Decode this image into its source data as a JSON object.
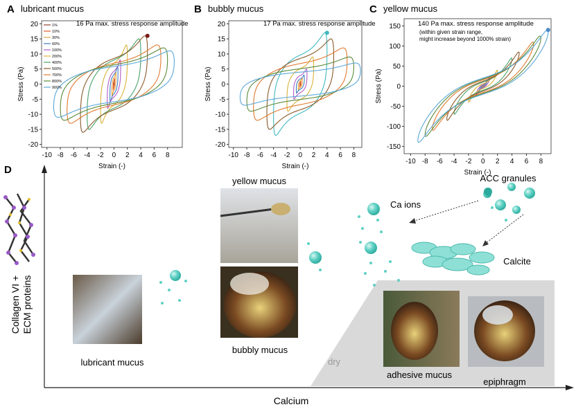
{
  "panels": [
    {
      "letter": "A",
      "title": "lubricant mucus",
      "annotation": [
        "16 Pa max. stress response amplitude"
      ],
      "xlabel": "Strain (-)",
      "ylabel": "Stress (Pa)",
      "xlim": [
        -10.8,
        10.2
      ],
      "ylim": [
        -21,
        21
      ],
      "xticks": [
        -10,
        -8,
        -6,
        -4,
        -2,
        0,
        2,
        4,
        6,
        8
      ],
      "yticks": [
        -20,
        -15,
        -10,
        -5,
        0,
        5,
        10,
        15,
        20
      ],
      "legend": [
        "1%",
        "10%",
        "30%",
        "60%",
        "100%",
        "200%",
        "400%",
        "500%",
        "700%",
        "800%",
        "900%"
      ],
      "strain": [
        0.01,
        0.1,
        0.3,
        0.6,
        1,
        2,
        4,
        5,
        7,
        8,
        9
      ],
      "stress": [
        0.5,
        2,
        4,
        6,
        8,
        13,
        15,
        16,
        13,
        12,
        11
      ],
      "colors": [
        "#8b3a2a",
        "#e05a2b",
        "#e8a33c",
        "#3c7dc0",
        "#b05bc4",
        "#d9b23a",
        "#4aa06a",
        "#8a5a2a",
        "#e07a30",
        "#5a8a3a",
        "#5aa6d6"
      ],
      "peak": [
        5,
        16
      ],
      "peak_color": "#7a1a1a"
    },
    {
      "letter": "B",
      "title": "bubbly mucus",
      "annotation": [
        "17 Pa max. stress response amplitude"
      ],
      "xlabel": "Strain (-)",
      "ylabel": "Stress (Pa)",
      "xlim": [
        -10.7,
        9.2
      ],
      "ylim": [
        -21,
        21
      ],
      "xticks": [
        -10,
        -8,
        -6,
        -4,
        -2,
        0,
        2,
        4,
        6,
        8
      ],
      "yticks": [
        -20,
        -15,
        -10,
        -5,
        0,
        5,
        10,
        15,
        20
      ],
      "strain": [
        0.01,
        0.1,
        0.3,
        0.6,
        1,
        2,
        4,
        5,
        7,
        8,
        9
      ],
      "stress": [
        0.3,
        1,
        2,
        3,
        5,
        9,
        17,
        15,
        12,
        9,
        7
      ],
      "colors": [
        "#8b3a2a",
        "#e05a2b",
        "#e8a33c",
        "#3c7dc0",
        "#b05bc4",
        "#d9b23a",
        "#3fb8c0",
        "#8a5a2a",
        "#e07a30",
        "#5a8a3a",
        "#5aa6d6"
      ],
      "peak": [
        4,
        17
      ],
      "peak_color": "#3fb8c0"
    },
    {
      "letter": "C",
      "title": "yellow mucus",
      "annotation": [
        "140 Pa max. stress response amplitude",
        "(within given strain range,",
        "might increase beyond 1000% strain)"
      ],
      "xlabel": "Strain (-)",
      "ylabel": "Stress (Pa)",
      "xlim": [
        -10.9,
        9.4
      ],
      "ylim": [
        -168,
        168
      ],
      "xticks": [
        -10,
        -8,
        -6,
        -4,
        -2,
        0,
        2,
        4,
        6,
        8
      ],
      "yticks": [
        -150,
        -100,
        -50,
        0,
        50,
        100,
        150
      ],
      "strain": [
        0.01,
        0.1,
        0.3,
        0.6,
        1,
        2,
        4,
        5,
        7,
        8,
        9
      ],
      "stress": [
        1,
        3,
        8,
        15,
        25,
        40,
        70,
        85,
        110,
        125,
        140
      ],
      "colors": [
        "#8b3a2a",
        "#e05a2b",
        "#e8a33c",
        "#3c7dc0",
        "#b05bc4",
        "#d9b23a",
        "#4aa06a",
        "#8a5a2a",
        "#e07a30",
        "#5a8a3a",
        "#5aa6d6"
      ],
      "peak": [
        9,
        140
      ],
      "peak_color": "#4a88c8"
    }
  ],
  "diagram": {
    "letter": "D",
    "y_axis": [
      "Collagen VI +",
      "ECM proteins"
    ],
    "x_axis": "Calcium",
    "labels": {
      "yellow": "yellow mucus",
      "lubricant": "lubricant mucus",
      "bubbly": "bubbly mucus",
      "ca": "Ca ions",
      "acc": "ACC granules",
      "calcite": "Calcite",
      "dry": "dry",
      "adhesive": "adhesive mucus",
      "epiphragm": "epiphragm"
    }
  }
}
